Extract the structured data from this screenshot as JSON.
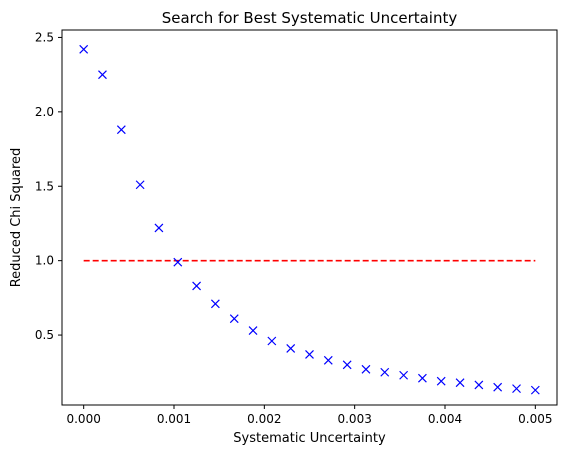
{
  "chart_data": {
    "type": "scatter",
    "title": "Search for Best Systematic Uncertainty",
    "xlabel": "Systematic Uncertainty",
    "ylabel": "Reduced Chi Squared",
    "xlim": [
      -0.00024,
      0.00524
    ],
    "ylim": [
      0.03,
      2.55
    ],
    "xticks": [
      0.0,
      0.001,
      0.002,
      0.003,
      0.004,
      0.005
    ],
    "xtick_labels": [
      "0.000",
      "0.001",
      "0.002",
      "0.003",
      "0.004",
      "0.005"
    ],
    "yticks": [
      0.5,
      1.0,
      1.5,
      2.0,
      2.5
    ],
    "ytick_labels": [
      "0.5",
      "1.0",
      "1.5",
      "2.0",
      "2.5"
    ],
    "grid": false,
    "series": [
      {
        "marker": "x",
        "color": "#0000ff",
        "x": [
          0.0,
          0.000208,
          0.000417,
          0.000625,
          0.000833,
          0.001042,
          0.00125,
          0.001458,
          0.001667,
          0.001875,
          0.002083,
          0.002292,
          0.0025,
          0.002708,
          0.002917,
          0.003125,
          0.003333,
          0.003542,
          0.00375,
          0.003958,
          0.004167,
          0.004375,
          0.004583,
          0.004792,
          0.005
        ],
        "y": [
          2.42,
          2.25,
          1.88,
          1.51,
          1.22,
          0.99,
          0.83,
          0.71,
          0.61,
          0.53,
          0.46,
          0.41,
          0.37,
          0.33,
          0.3,
          0.27,
          0.25,
          0.23,
          0.21,
          0.19,
          0.18,
          0.165,
          0.15,
          0.14,
          0.13
        ]
      }
    ],
    "reference_line": {
      "y": 1.0,
      "x_range": [
        0.0,
        0.005
      ],
      "style": "dashed",
      "color": "#ff0000"
    }
  }
}
